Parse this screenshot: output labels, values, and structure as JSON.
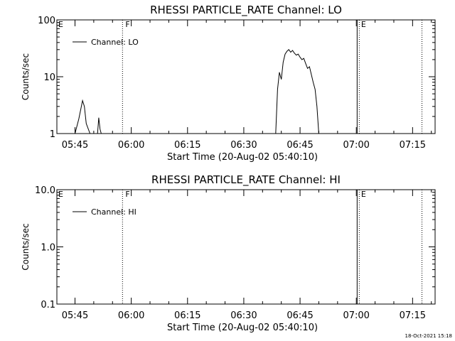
{
  "chart_data": [
    {
      "type": "line",
      "title": "RHESSI PARTICLE_RATE Channel: LO",
      "xlabel": "Start Time (20-Aug-02 05:40:10)",
      "ylabel": "Counts/sec",
      "yscale": "log",
      "ylim": [
        1,
        100
      ],
      "yticks": [
        "1",
        "10",
        "100"
      ],
      "xlim": [
        "05:40:10",
        "07:21:00"
      ],
      "xticks": [
        "05:45",
        "06:00",
        "06:15",
        "06:30",
        "06:45",
        "07:00",
        "07:15"
      ],
      "legend": "top-left",
      "series": [
        {
          "name": "Channel: LO",
          "x": [
            "05:45:00",
            "05:46:00",
            "05:47:00",
            "05:47:30",
            "05:48:00",
            "05:49:00",
            "05:50:00",
            "05:51:00",
            "05:51:20",
            "05:51:40",
            "05:52:00",
            "06:38:30",
            "06:39:00",
            "06:39:30",
            "06:40:00",
            "06:40:30",
            "06:41:00",
            "06:41:30",
            "06:42:00",
            "06:42:30",
            "06:43:00",
            "06:43:30",
            "06:44:00",
            "06:44:30",
            "06:45:00",
            "06:45:30",
            "06:46:00",
            "06:46:30",
            "06:47:00",
            "06:47:30",
            "06:48:00",
            "06:48:30",
            "06:49:00",
            "06:49:30",
            "06:50:00"
          ],
          "values": [
            1,
            1.8,
            3.8,
            3.0,
            1.5,
            1,
            1,
            1,
            1.9,
            1.2,
            1,
            1,
            6,
            12,
            9,
            18,
            25,
            28,
            30,
            27,
            29,
            26,
            24,
            25,
            22,
            20,
            21,
            17,
            14,
            15,
            11,
            8,
            6,
            3,
            1
          ]
        }
      ],
      "markers": [
        {
          "label": "F",
          "time": "05:57:40",
          "style": "dotted"
        },
        {
          "label": "E",
          "time": "07:00:30",
          "style": "solid"
        },
        {
          "label": "",
          "time": "07:17:30",
          "style": "dotted"
        }
      ]
    },
    {
      "type": "line",
      "title": "RHESSI PARTICLE_RATE Channel: HI",
      "xlabel": "Start Time (20-Aug-02 05:40:10)",
      "ylabel": "Counts/sec",
      "yscale": "log",
      "ylim": [
        0.1,
        10
      ],
      "yticks": [
        "0.1",
        "1.0",
        "10.0"
      ],
      "xlim": [
        "05:40:10",
        "07:21:00"
      ],
      "xticks": [
        "05:45",
        "06:00",
        "06:15",
        "06:30",
        "06:45",
        "07:00",
        "07:15"
      ],
      "legend": "top-left",
      "series": [
        {
          "name": "Channel: HI",
          "x": [],
          "values": []
        }
      ],
      "markers": [
        {
          "label": "F",
          "time": "05:57:40",
          "style": "dotted"
        },
        {
          "label": "E",
          "time": "07:00:30",
          "style": "solid"
        },
        {
          "label": "",
          "time": "07:17:30",
          "style": "dotted"
        }
      ],
      "corner_label": "E"
    }
  ],
  "footer": {
    "timestamp": "18-Oct-2021 15:18"
  }
}
